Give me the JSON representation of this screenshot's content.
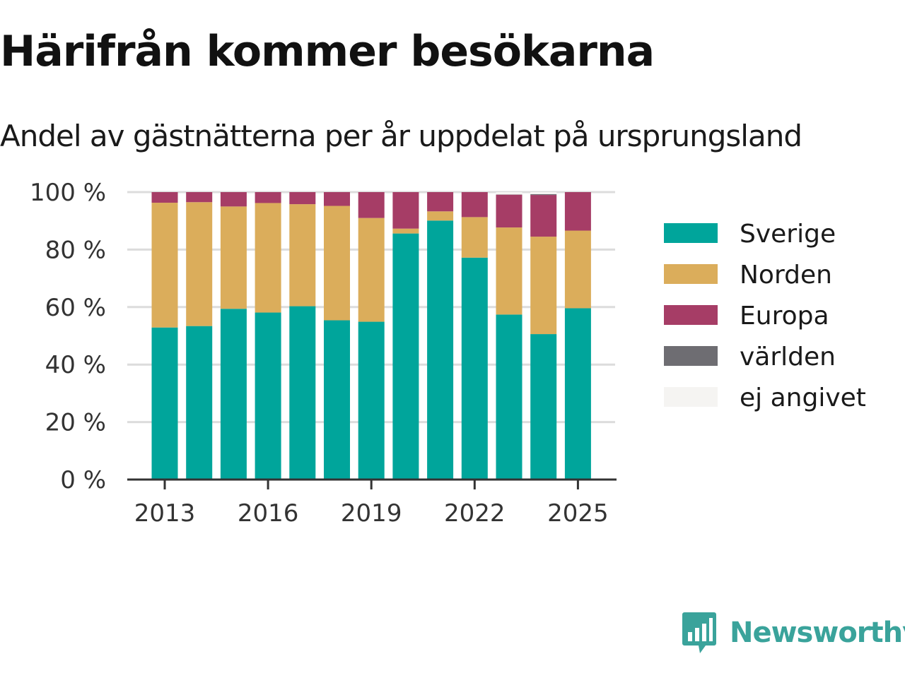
{
  "header": {
    "title": "Härifrån kommer besökarna",
    "subtitle": "Andel av gästnätterna per år uppdelat på ursprungsland"
  },
  "branding": {
    "logo_text": "Newsworthy",
    "logo_icon": "bar-chart-speech-bubble-icon",
    "color": "#3aa39b"
  },
  "chart_data": {
    "type": "bar",
    "stacked": true,
    "x": [
      2013,
      2014,
      2015,
      2016,
      2017,
      2018,
      2019,
      2020,
      2021,
      2022,
      2023,
      2024,
      2025
    ],
    "x_tick_labels": [
      "2013",
      "2016",
      "2019",
      "2022",
      "2025"
    ],
    "y_ticks": [
      0,
      20,
      40,
      60,
      80,
      100
    ],
    "y_tick_labels": [
      "0 %",
      "20 %",
      "40 %",
      "60 %",
      "80 %",
      "100 %"
    ],
    "ylim": [
      0,
      100
    ],
    "grid": "horizontal",
    "legend_position": "right",
    "series": [
      {
        "name": "Sverige",
        "color": "#00a59b",
        "values": [
          52.9,
          53.4,
          59.4,
          58.1,
          60.3,
          55.4,
          54.9,
          85.6,
          90.1,
          77.2,
          57.4,
          50.6,
          59.6
        ]
      },
      {
        "name": "Norden",
        "color": "#dbad5b",
        "values": [
          43.4,
          43.1,
          35.6,
          38.1,
          35.5,
          39.8,
          36.1,
          1.7,
          3.2,
          14.1,
          30.3,
          33.9,
          27.0
        ]
      },
      {
        "name": "Europa",
        "color": "#a63d66",
        "values": [
          3.7,
          3.5,
          5.0,
          3.8,
          4.2,
          4.8,
          9.0,
          12.7,
          6.7,
          8.7,
          11.4,
          14.5,
          13.4
        ]
      },
      {
        "name": "världen",
        "color": "#6e6d72",
        "values": [
          0.0,
          0.0,
          0.0,
          0.0,
          0.0,
          0.0,
          0.0,
          0.0,
          0.0,
          0.0,
          0.1,
          0.3,
          0.0
        ]
      },
      {
        "name": "ej angivet",
        "color": "#f5f4f2",
        "values": [
          0.0,
          0.0,
          0.0,
          0.0,
          0.0,
          0.0,
          0.0,
          0.0,
          0.0,
          0.0,
          0.8,
          0.7,
          0.0
        ]
      }
    ]
  }
}
